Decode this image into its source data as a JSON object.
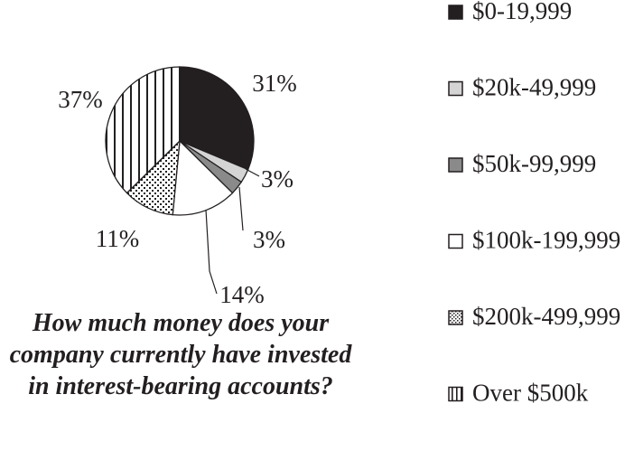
{
  "chart_data": {
    "type": "pie",
    "title": "How much money does your company currently have invested in interest-bearing accounts?",
    "categories": [
      "$0-19,999",
      "$20k-49,999",
      "$50k-99,999",
      "$100k-199,999",
      "$200k-499,999",
      "Over $500k"
    ],
    "values": [
      31,
      3,
      3,
      14,
      11,
      37
    ],
    "value_labels": [
      "31%",
      "3%",
      "3%",
      "14%",
      "11%",
      "37%"
    ],
    "series": [
      {
        "name": "$0-19,999",
        "value": 31,
        "fill": "#231f20",
        "pattern": "solid"
      },
      {
        "name": "$20k-49,999",
        "value": 3,
        "fill": "#d4d4d4",
        "pattern": "solid"
      },
      {
        "name": "$50k-99,999",
        "value": 3,
        "fill": "#8a8a8a",
        "pattern": "solid"
      },
      {
        "name": "$100k-199,999",
        "value": 14,
        "fill": "#ffffff",
        "pattern": "solid"
      },
      {
        "name": "$200k-499,999",
        "value": 11,
        "fill": "#ffffff",
        "pattern": "dots"
      },
      {
        "name": "Over $500k",
        "value": 37,
        "fill": "#ffffff",
        "pattern": "vertical-stripes"
      }
    ],
    "legend_position": "right"
  }
}
